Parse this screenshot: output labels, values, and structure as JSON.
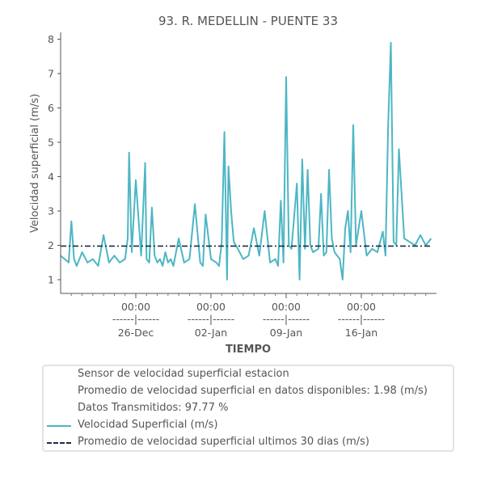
{
  "chart_data": {
    "type": "line",
    "title": "93. R. MEDELLIN - PUENTE 33",
    "xlabel": "TIEMPO",
    "ylabel": "Velocidad superficial (m/s)",
    "ylim": [
      0.6,
      8.2
    ],
    "yticks": [
      "1",
      "2",
      "3",
      "4",
      "5",
      "6",
      "7",
      "8"
    ],
    "xlim": [
      "2021-12-19T00:00",
      "2022-01-23T00:00"
    ],
    "xticks": [
      {
        "x": "2021-12-26T00:00",
        "time": "00:00",
        "sep": "------|------",
        "date": "26-Dec"
      },
      {
        "x": "2022-01-02T00:00",
        "time": "00:00",
        "sep": "------|------",
        "date": "02-Jan"
      },
      {
        "x": "2022-01-09T00:00",
        "time": "00:00",
        "sep": "------|------",
        "date": "09-Jan"
      },
      {
        "x": "2022-01-16T00:00",
        "time": "00:00",
        "sep": "------|------",
        "date": "16-Jan"
      }
    ],
    "grid": false,
    "legend_position": "bottom",
    "legend_info": [
      "Sensor de velocidad superficial estacion",
      "Promedio de velocidad superficial en datos disponibles: 1.98 (m/s)",
      "Datos Transmitidos: 97.77 %"
    ],
    "series": [
      {
        "name": "Velocidad Superficial (m/s)",
        "color": "#4db6c4",
        "style": "solid",
        "x": [
          "2021-12-19T00:00",
          "2021-12-19T18:00",
          "2021-12-20T00:00",
          "2021-12-20T06:00",
          "2021-12-20T12:00",
          "2021-12-21T00:00",
          "2021-12-21T12:00",
          "2021-12-22T00:00",
          "2021-12-22T12:00",
          "2021-12-23T00:00",
          "2021-12-23T12:00",
          "2021-12-24T00:00",
          "2021-12-24T12:00",
          "2021-12-25T00:00",
          "2021-12-25T06:00",
          "2021-12-25T09:00",
          "2021-12-25T15:00",
          "2021-12-26T00:00",
          "2021-12-26T12:00",
          "2021-12-26T21:00",
          "2021-12-27T00:00",
          "2021-12-27T06:00",
          "2021-12-27T12:00",
          "2021-12-27T18:00",
          "2021-12-28T00:00",
          "2021-12-28T06:00",
          "2021-12-28T12:00",
          "2021-12-28T18:00",
          "2021-12-29T00:00",
          "2021-12-29T06:00",
          "2021-12-29T12:00",
          "2021-12-30T00:00",
          "2021-12-30T12:00",
          "2021-12-31T00:00",
          "2021-12-31T12:00",
          "2022-01-01T00:00",
          "2022-01-01T06:00",
          "2022-01-01T12:00",
          "2022-01-02T00:00",
          "2022-01-02T12:00",
          "2022-01-02T18:00",
          "2022-01-03T00:00",
          "2022-01-03T06:00",
          "2022-01-03T12:00",
          "2022-01-03T15:00",
          "2022-01-03T21:00",
          "2022-01-04T03:00",
          "2022-01-04T12:00",
          "2022-01-05T00:00",
          "2022-01-05T12:00",
          "2022-01-06T00:00",
          "2022-01-06T06:00",
          "2022-01-06T12:00",
          "2022-01-07T00:00",
          "2022-01-07T12:00",
          "2022-01-08T00:00",
          "2022-01-08T06:00",
          "2022-01-08T12:00",
          "2022-01-08T18:00",
          "2022-01-09T00:00",
          "2022-01-09T06:00",
          "2022-01-09T12:00",
          "2022-01-10T00:00",
          "2022-01-10T06:00",
          "2022-01-10T12:00",
          "2022-01-10T18:00",
          "2022-01-11T00:00",
          "2022-01-11T06:00",
          "2022-01-11T12:00",
          "2022-01-12T00:00",
          "2022-01-12T06:00",
          "2022-01-12T12:00",
          "2022-01-12T18:00",
          "2022-01-13T00:00",
          "2022-01-13T06:00",
          "2022-01-13T12:00",
          "2022-01-14T00:00",
          "2022-01-14T06:00",
          "2022-01-14T12:00",
          "2022-01-14T18:00",
          "2022-01-15T00:00",
          "2022-01-15T06:00",
          "2022-01-15T12:00",
          "2022-01-16T00:00",
          "2022-01-16T12:00",
          "2022-01-17T00:00",
          "2022-01-17T12:00",
          "2022-01-18T00:00",
          "2022-01-18T06:00",
          "2022-01-18T12:00",
          "2022-01-18T18:00",
          "2022-01-19T00:00",
          "2022-01-19T06:00",
          "2022-01-19T12:00",
          "2022-01-20T00:00",
          "2022-01-20T12:00",
          "2022-01-21T00:00",
          "2022-01-21T12:00",
          "2022-01-22T00:00",
          "2022-01-22T12:00"
        ],
        "y": [
          1.7,
          1.5,
          2.7,
          1.6,
          1.4,
          1.8,
          1.5,
          1.6,
          1.4,
          2.3,
          1.5,
          1.7,
          1.5,
          1.6,
          2.2,
          4.7,
          1.8,
          3.9,
          1.7,
          4.4,
          1.6,
          1.5,
          3.1,
          1.7,
          1.5,
          1.6,
          1.4,
          1.8,
          1.5,
          1.6,
          1.4,
          2.2,
          1.5,
          1.6,
          3.2,
          1.5,
          1.4,
          2.9,
          1.6,
          1.5,
          1.4,
          2.1,
          5.3,
          1.0,
          4.3,
          3.0,
          2.1,
          1.9,
          1.6,
          1.7,
          2.5,
          2.1,
          1.7,
          3.0,
          1.5,
          1.6,
          1.4,
          3.3,
          1.5,
          6.9,
          2.0,
          1.9,
          3.8,
          1.0,
          4.5,
          1.9,
          4.2,
          2.0,
          1.8,
          1.9,
          3.5,
          1.7,
          1.8,
          4.2,
          2.2,
          1.8,
          1.6,
          1.0,
          2.5,
          3.0,
          1.8,
          5.5,
          2.0,
          3.0,
          1.7,
          1.9,
          1.8,
          2.4,
          1.7,
          5.5,
          7.9,
          2.1,
          2.0,
          4.8,
          2.2,
          2.1,
          2.0,
          2.3,
          2.0,
          2.2
        ]
      },
      {
        "name": "Promedio de velocidad superficial ultimos 30 dias (m/s)",
        "color": "#1f2a44",
        "style": "dash-dot",
        "x": [
          "2021-12-19T00:00",
          "2022-01-22T12:00"
        ],
        "y": [
          1.98,
          1.98
        ]
      }
    ]
  }
}
